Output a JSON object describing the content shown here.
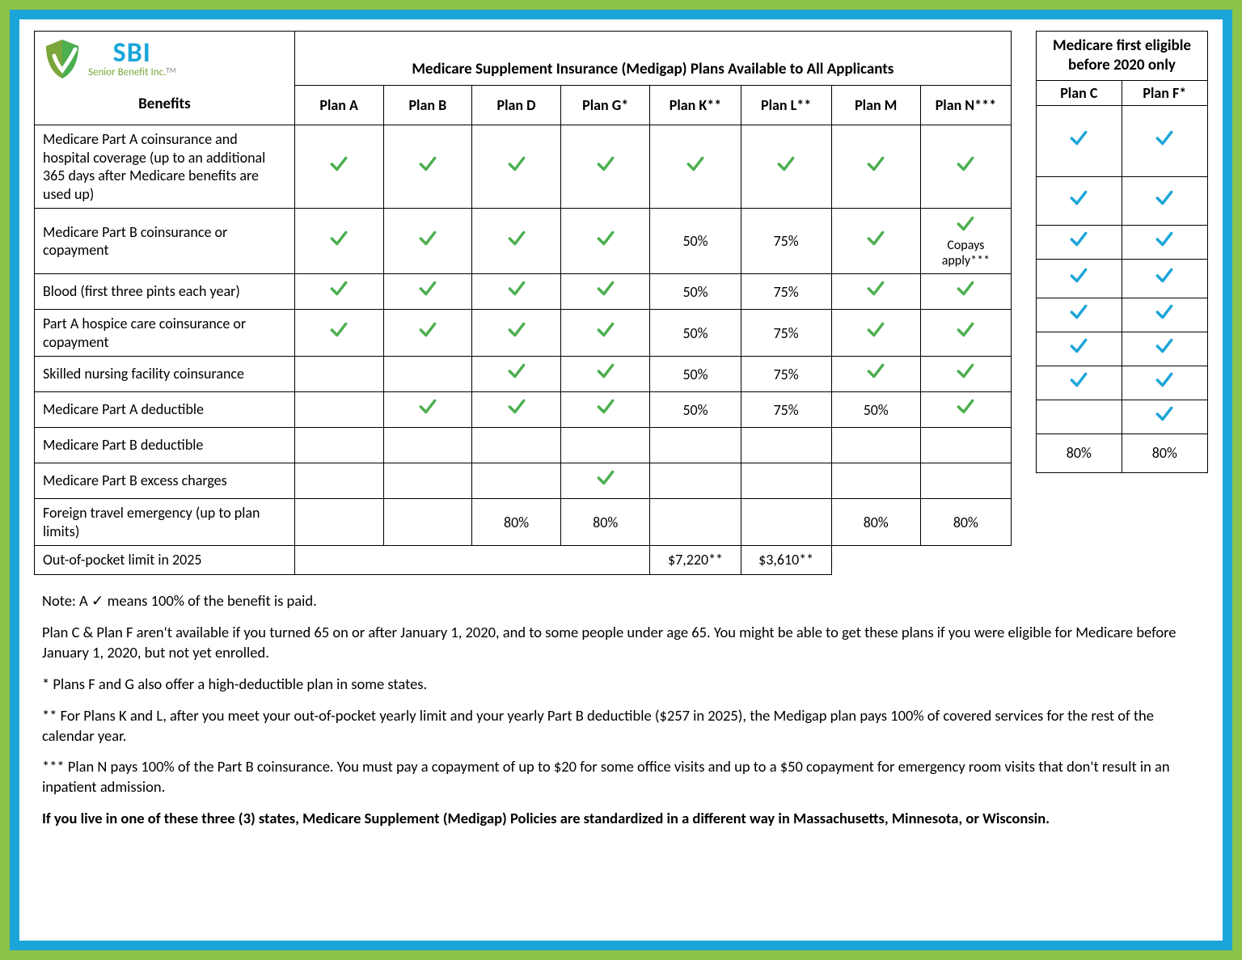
{
  "logo": {
    "line1": "SBI",
    "line2": "Senior Benefit Inc.",
    "tm": "TM"
  },
  "colors": {
    "outer_border": "#8bc34a",
    "inner_border": "#1ba5d8",
    "check_green": "#4caf50",
    "check_blue": "#1ba5d8",
    "logo_blue": "#1ba5d8",
    "logo_green": "#7aa63a"
  },
  "main": {
    "title": "Medicare Supplement Insurance (Medigap) Plans Available to All Applicants",
    "benefits_header": "Benefits",
    "plans": [
      "Plan A",
      "Plan B",
      "Plan D",
      "Plan G*",
      "Plan K**",
      "Plan L**",
      "Plan M",
      "Plan N***"
    ],
    "rows": [
      {
        "label": "Medicare Part A coinsurance and hospital coverage (up to an additional 365 days after Medicare benefits are used up)",
        "cells": [
          "check",
          "check",
          "check",
          "check",
          "check",
          "check",
          "check",
          "check"
        ]
      },
      {
        "label": "Medicare Part B coinsurance or copayment",
        "cells": [
          "check",
          "check",
          "check",
          "check",
          "50%",
          "75%",
          "check",
          "copays"
        ]
      },
      {
        "label": "Blood (first three pints each year)",
        "cells": [
          "check",
          "check",
          "check",
          "check",
          "50%",
          "75%",
          "check",
          "check"
        ]
      },
      {
        "label": "Part A hospice care coinsurance or copayment",
        "cells": [
          "check",
          "check",
          "check",
          "check",
          "50%",
          "75%",
          "check",
          "check"
        ]
      },
      {
        "label": "Skilled nursing facility coinsurance",
        "cells": [
          "",
          "",
          "check",
          "check",
          "50%",
          "75%",
          "check",
          "check"
        ]
      },
      {
        "label": "Medicare Part A deductible",
        "cells": [
          "",
          "check",
          "check",
          "check",
          "50%",
          "75%",
          "50%",
          "check"
        ]
      },
      {
        "label": "Medicare Part B deductible",
        "cells": [
          "",
          "",
          "",
          "",
          "",
          "",
          "",
          ""
        ]
      },
      {
        "label": "Medicare Part B excess charges",
        "cells": [
          "",
          "",
          "",
          "check",
          "",
          "",
          "",
          ""
        ]
      },
      {
        "label": "Foreign travel emergency (up to plan limits)",
        "cells": [
          "",
          "",
          "80%",
          "80%",
          "",
          "",
          "80%",
          "80%"
        ]
      },
      {
        "label": "Out-of-pocket limit in 2025",
        "cells": [
          "",
          "",
          "",
          "",
          "$7,220**",
          "$3,610**",
          "",
          ""
        ]
      }
    ],
    "copays_text": "Copays apply***"
  },
  "side": {
    "title_line1": "Medicare first eligible",
    "title_line2": "before 2020 only",
    "plans": [
      "Plan C",
      "Plan F*"
    ],
    "rows": [
      [
        "check",
        "check"
      ],
      [
        "check",
        "check"
      ],
      [
        "check",
        "check"
      ],
      [
        "check",
        "check"
      ],
      [
        "check",
        "check"
      ],
      [
        "check",
        "check"
      ],
      [
        "check",
        "check"
      ],
      [
        "",
        "check"
      ],
      [
        "80%",
        "80%"
      ]
    ]
  },
  "notes": {
    "n1": "Note: A ✓ means 100% of the benefit is paid.",
    "n2": "Plan C & Plan F aren't available if you turned 65 on or after January 1, 2020, and to some people under age 65. You might be able to get these plans if you were eligible for Medicare before January 1, 2020, but not yet enrolled.",
    "n3": "* Plans F and G also offer a high-deductible plan in some states.",
    "n4": "** For Plans K and L, after you meet your out-of-pocket yearly limit and your yearly Part B deductible ($257 in 2025), the Medigap plan pays 100% of covered services for the rest of the calendar year.",
    "n5": "*** Plan N pays 100% of the Part B coinsurance. You must pay a copayment of up to $20 for some office visits and up to a $50 copayment for emergency room visits that don't result in an inpatient admission.",
    "n6": "If you live in one of these three (3) states, Medicare Supplement (Medigap) Policies are standardized in a different way in Massachusetts,  Minnesota, or Wisconsin."
  }
}
